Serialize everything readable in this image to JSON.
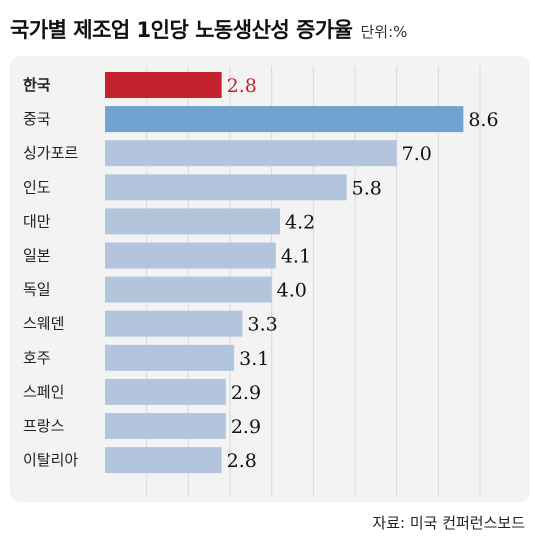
{
  "header": {
    "title": "국가별 제조업 1인당 노동생산성 증가율",
    "unit": "단위:%"
  },
  "source": "자료: 미국 컨퍼런스보드",
  "colors": {
    "highlight": "#c4222e",
    "accent": "#6fa4d0",
    "default": "#b3c5dd"
  },
  "chart_data": {
    "type": "bar",
    "orientation": "horizontal",
    "title": "국가별 제조업 1인당 노동생산성 증가율",
    "unit": "단위:%",
    "xlim": [
      0,
      9
    ],
    "grid": true,
    "legend": "none",
    "categories": [
      "한국",
      "중국",
      "싱가포르",
      "인도",
      "대만",
      "일본",
      "독일",
      "스웨덴",
      "호주",
      "스페인",
      "프랑스",
      "이탈리아"
    ],
    "values": [
      2.8,
      8.6,
      7.0,
      5.8,
      4.2,
      4.1,
      4.0,
      3.3,
      3.1,
      2.9,
      2.9,
      2.8
    ],
    "value_labels": [
      "2.8",
      "8.6",
      "7.0",
      "5.8",
      "4.2",
      "4.1",
      "4.0",
      "3.3",
      "3.1",
      "2.9",
      "2.9",
      "2.8"
    ],
    "highlight_category": "한국",
    "accent_category": "중국"
  }
}
